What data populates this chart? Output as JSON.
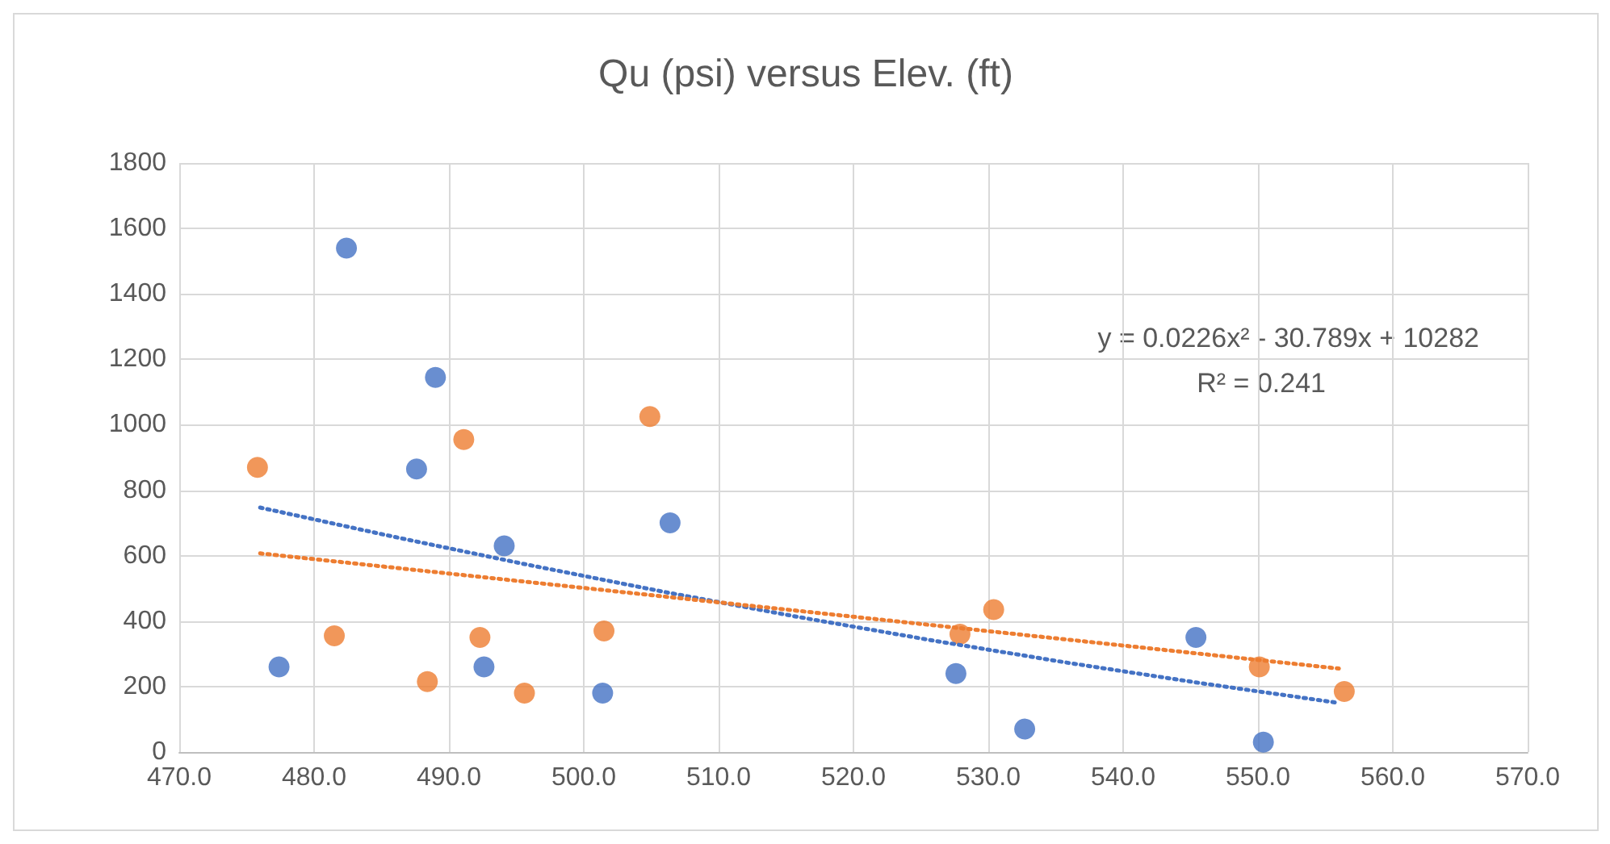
{
  "chart_data": {
    "type": "scatter",
    "title": "Qu (psi) versus Elev. (ft)",
    "xlim": [
      470,
      570
    ],
    "xticks": [
      {
        "value": 470,
        "label": "470.0"
      },
      {
        "value": 480,
        "label": "480.0"
      },
      {
        "value": 490,
        "label": "490.0"
      },
      {
        "value": 500,
        "label": "500.0"
      },
      {
        "value": 510,
        "label": "510.0"
      },
      {
        "value": 520,
        "label": "520.0"
      },
      {
        "value": 530,
        "label": "530.0"
      },
      {
        "value": 540,
        "label": "540.0"
      },
      {
        "value": 550,
        "label": "550.0"
      },
      {
        "value": 560,
        "label": "560.0"
      },
      {
        "value": 570,
        "label": "570.0"
      }
    ],
    "ylim": [
      0,
      1800
    ],
    "yticks": [
      0,
      200,
      400,
      600,
      800,
      1000,
      1200,
      1400,
      1600,
      1800
    ],
    "grid": true,
    "marker": "circle",
    "series": [
      {
        "color": "#4472c4",
        "x": [
          482.4,
          489.0,
          487.6,
          494.1,
          506.4,
          477.4,
          492.6,
          501.4,
          527.6,
          532.7,
          545.4,
          550.4
        ],
        "values": [
          1540,
          1145,
          865,
          630,
          700,
          260,
          260,
          180,
          240,
          70,
          350,
          30
        ]
      },
      {
        "color": "#ed7d31",
        "x": [
          475.8,
          491.1,
          504.9,
          481.5,
          488.4,
          492.3,
          495.6,
          501.5,
          527.9,
          530.4,
          550.1,
          556.4
        ],
        "values": [
          870,
          955,
          1025,
          355,
          215,
          350,
          180,
          370,
          360,
          435,
          260,
          185
        ]
      },
      {
        "type": "line",
        "color": "#4472c4",
        "line_style": "dotted",
        "marker": "none",
        "x": [
          476,
          486,
          496,
          506,
          516,
          526,
          536,
          546,
          556
        ],
        "values": [
          747,
          657,
          571,
          489,
          412,
          340,
          272,
          209,
          150
        ]
      },
      {
        "type": "line",
        "color": "#ed7d31",
        "line_style": "dotted",
        "marker": "none",
        "x": [
          476,
          556
        ],
        "values": [
          607,
          255
        ]
      }
    ],
    "annotations": [
      "y = 0.0226x² - 30.789x + 10282",
      "R² = 0.241"
    ]
  }
}
